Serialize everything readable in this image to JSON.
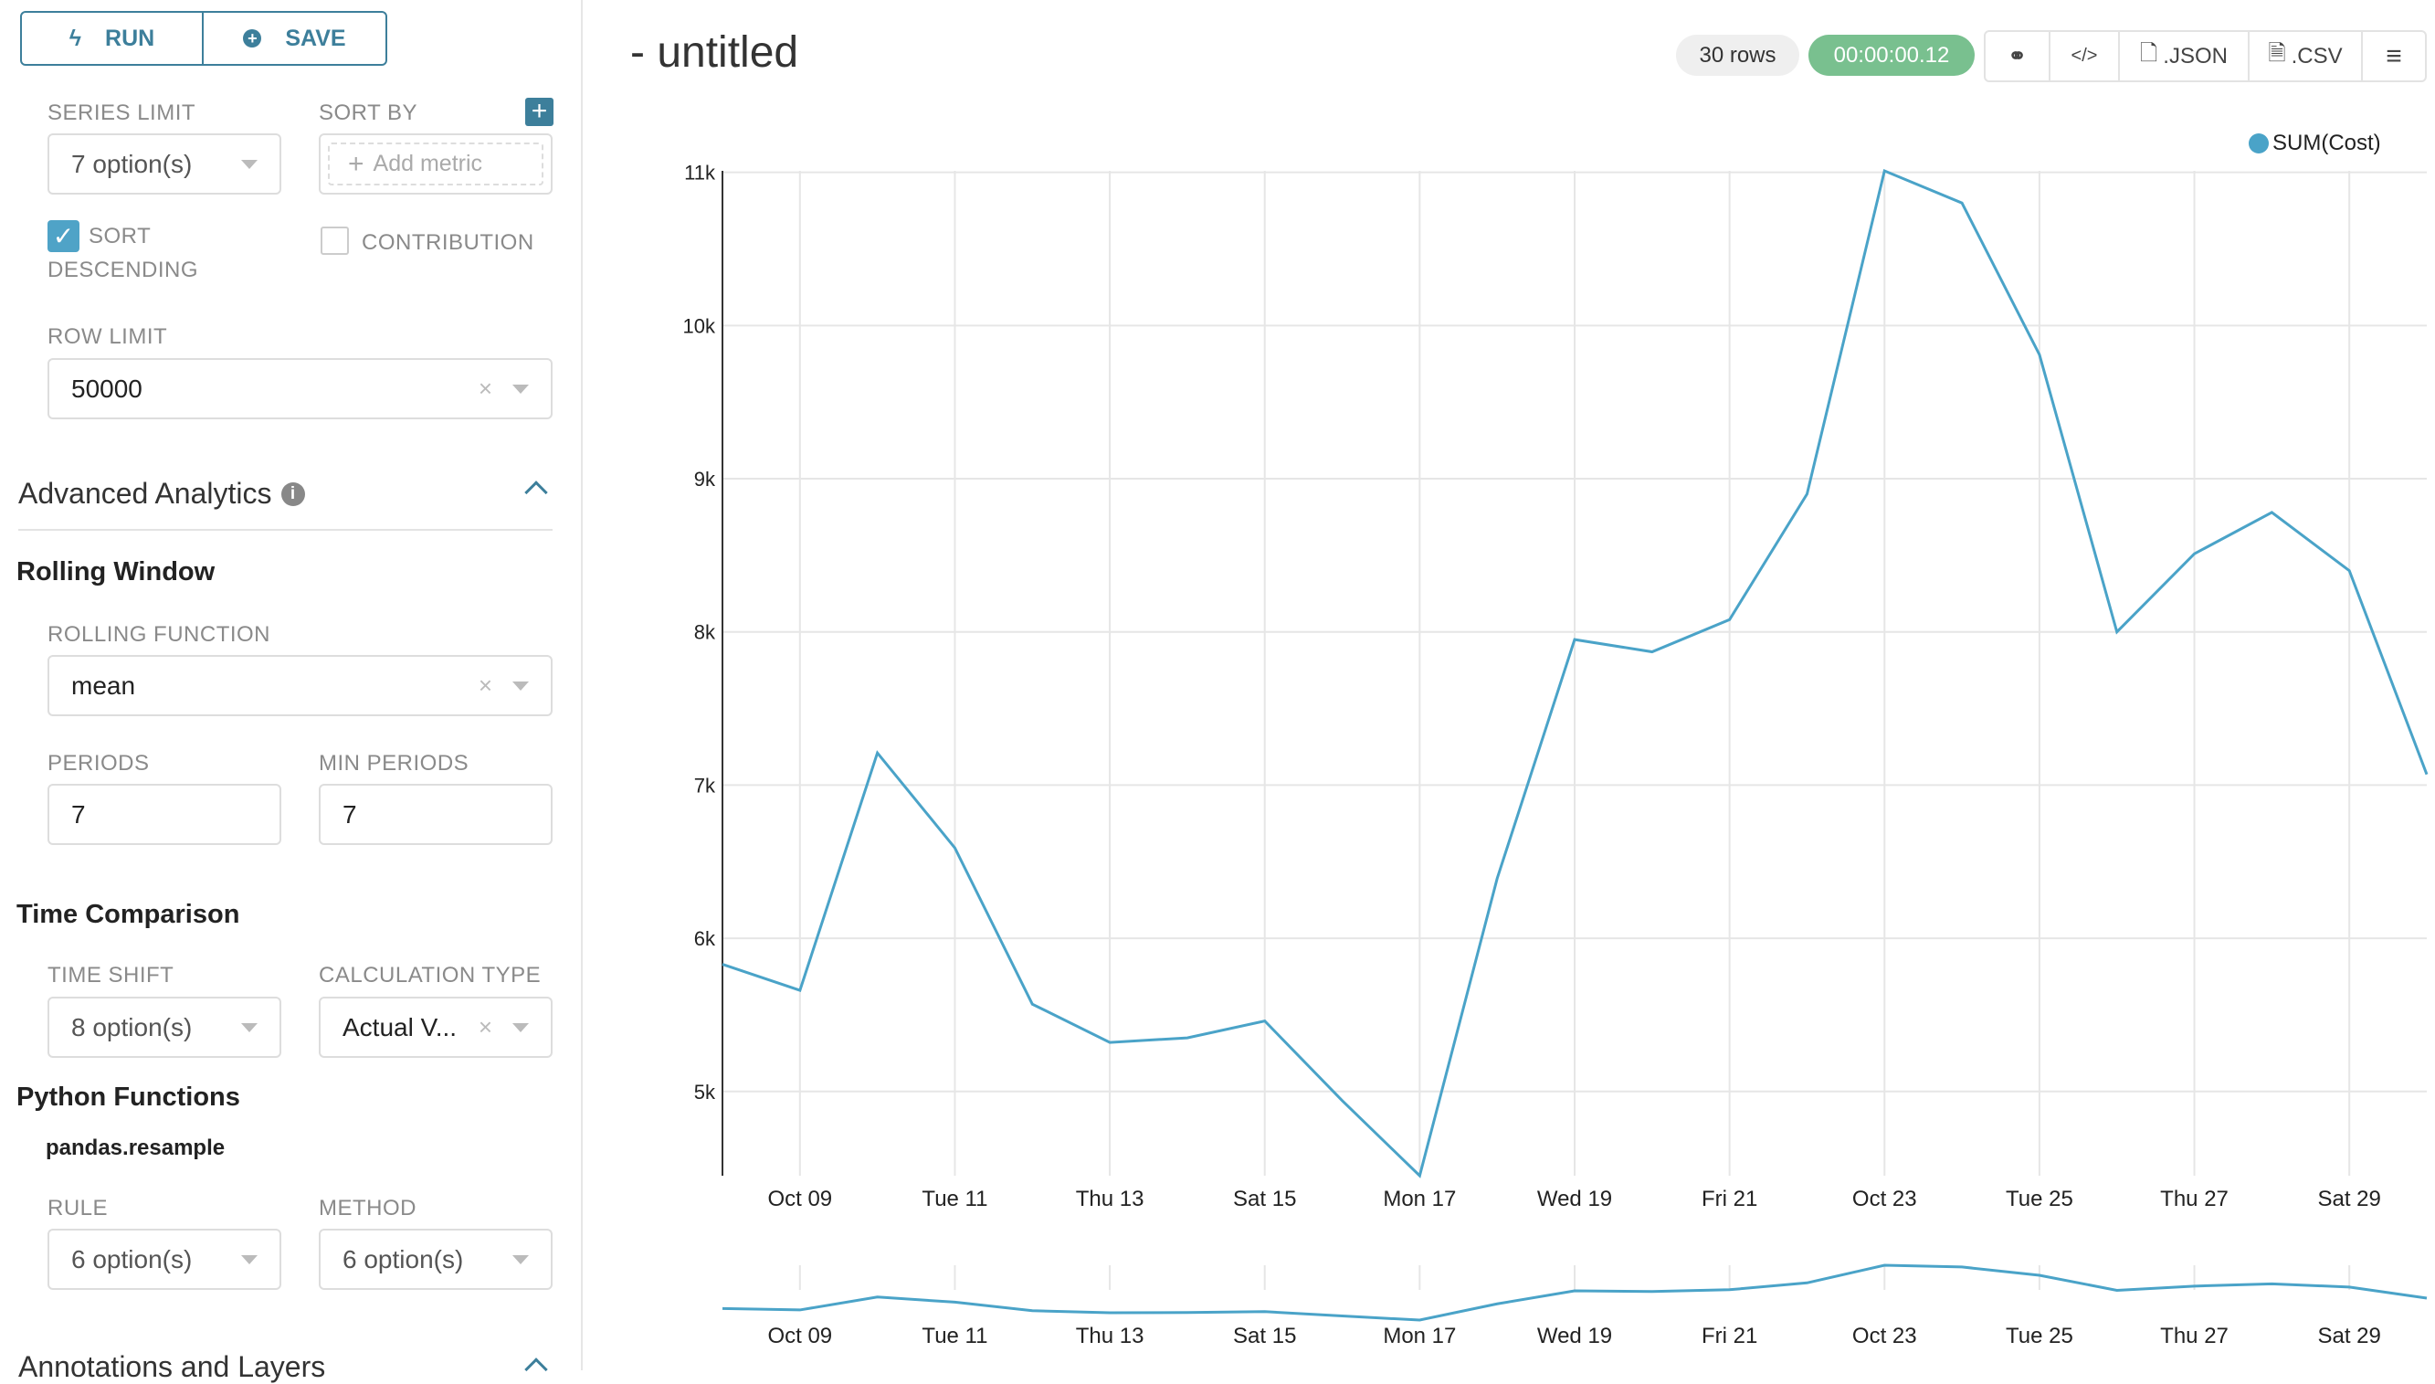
{
  "toolbar": {
    "run_label": "RUN",
    "save_label": "SAVE"
  },
  "query": {
    "series_limit": {
      "label": "SERIES LIMIT",
      "value": "7 option(s)"
    },
    "sort_by": {
      "label": "SORT BY",
      "placeholder": "Add metric"
    },
    "sort_descending": {
      "label_line1": "SORT",
      "label_line2": "DESCENDING",
      "checked": true
    },
    "contribution": {
      "label": "CONTRIBUTION",
      "checked": false
    },
    "row_limit": {
      "label": "ROW LIMIT",
      "value": "50000"
    }
  },
  "advanced": {
    "title": "Advanced Analytics",
    "rolling_window": {
      "title": "Rolling Window",
      "function_label": "ROLLING FUNCTION",
      "function_value": "mean",
      "periods_label": "PERIODS",
      "periods_value": "7",
      "min_periods_label": "MIN PERIODS",
      "min_periods_value": "7"
    },
    "time_comparison": {
      "title": "Time Comparison",
      "time_shift_label": "TIME SHIFT",
      "time_shift_value": "8 option(s)",
      "calc_type_label": "CALCULATION TYPE",
      "calc_type_value": "Actual V..."
    },
    "python": {
      "title": "Python Functions",
      "subtitle": "pandas.resample",
      "rule_label": "RULE",
      "rule_value": "6 option(s)",
      "method_label": "METHOD",
      "method_value": "6 option(s)"
    }
  },
  "annotations": {
    "title": "Annotations and Layers"
  },
  "header": {
    "title": "- untitled",
    "rows_badge": "30 rows",
    "timer": "00:00:00.12",
    "json_label": ".JSON",
    "csv_label": ".CSV"
  },
  "colors": {
    "accent": "#3d7f9b",
    "series": "#4aa3c8",
    "timer_bg": "#79c08f"
  },
  "chart_data": {
    "type": "line",
    "x": [
      "2018-10-08",
      "2018-10-09",
      "2018-10-10",
      "2018-10-11",
      "2018-10-12",
      "2018-10-13",
      "2018-10-14",
      "2018-10-15",
      "2018-10-16",
      "2018-10-17",
      "2018-10-18",
      "2018-10-19",
      "2018-10-20",
      "2018-10-21",
      "2018-10-22",
      "2018-10-23",
      "2018-10-24",
      "2018-10-25",
      "2018-10-26",
      "2018-10-27",
      "2018-10-28",
      "2018-10-29",
      "2018-10-30"
    ],
    "series": [
      {
        "name": "SUM(Cost)",
        "values": [
          5830,
          5660,
          7210,
          6590,
          5570,
          5320,
          5350,
          5460,
          4940,
          4450,
          6390,
          7950,
          7870,
          8080,
          8900,
          11010,
          10800,
          9810,
          8000,
          8510,
          8780,
          8400,
          7070
        ]
      }
    ],
    "x_tick_labels": [
      "Oct 09",
      "Tue 11",
      "Thu 13",
      "Sat 15",
      "Mon 17",
      "Wed 19",
      "Fri 21",
      "Oct 23",
      "Tue 25",
      "Thu 27",
      "Sat 29"
    ],
    "y_tick_labels": [
      "5k",
      "6k",
      "7k",
      "8k",
      "9k",
      "10k",
      "11k"
    ],
    "y_ticks": [
      5000,
      6000,
      7000,
      8000,
      9000,
      10000,
      11000
    ],
    "ylim": [
      4450,
      11010
    ],
    "grid": true,
    "legend": "top-right",
    "brush_preview": true
  }
}
